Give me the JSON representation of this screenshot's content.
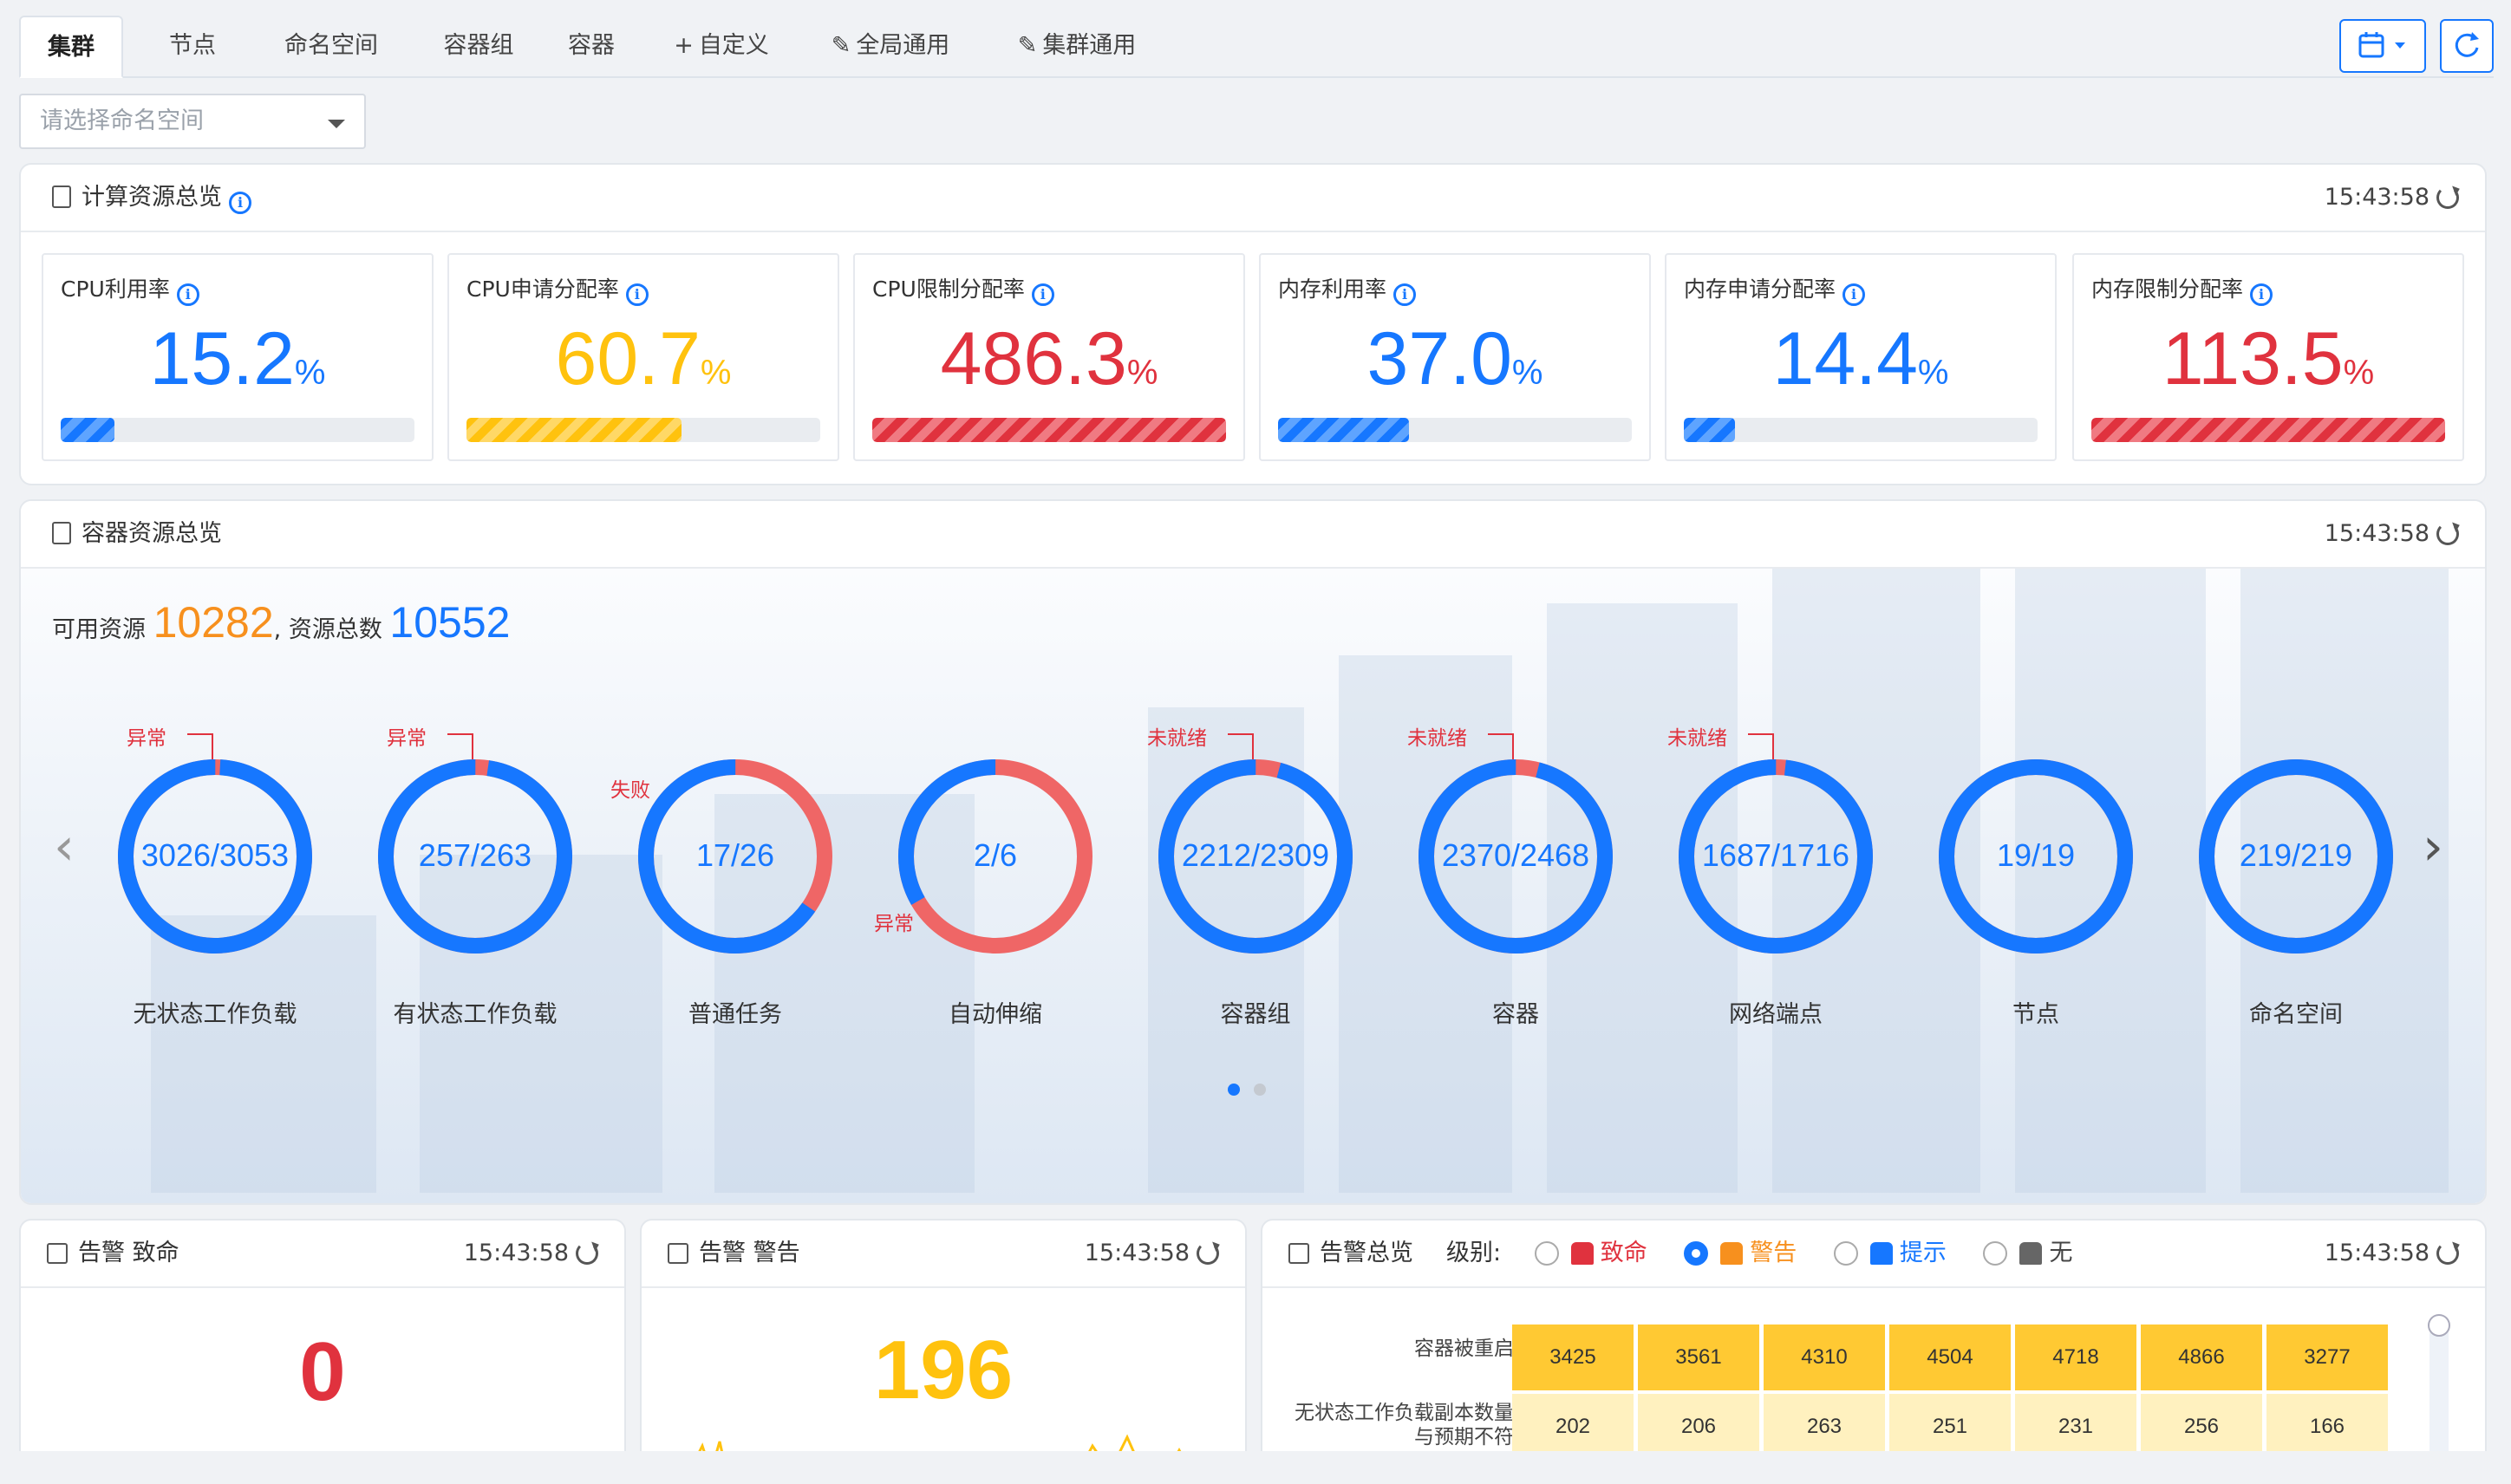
{
  "tabs": [
    {
      "label": "集群",
      "prefix": ""
    },
    {
      "label": "节点",
      "prefix": ""
    },
    {
      "label": "命名空间",
      "prefix": ""
    },
    {
      "label": "容器组",
      "prefix": ""
    },
    {
      "label": "容器",
      "prefix": ""
    },
    {
      "label": "自定义",
      "prefix": "+"
    },
    {
      "label": "全局通用",
      "prefix": "✎"
    },
    {
      "label": "集群通用",
      "prefix": "✎"
    }
  ],
  "namespace_select": {
    "placeholder": "请选择命名空间"
  },
  "compute": {
    "title": "计算资源总览",
    "timestamp": "15:43:58",
    "metrics": [
      {
        "label": "CPU利用率",
        "value": "15.2",
        "unit": "%",
        "percent": 15.2,
        "color": "#1677ff",
        "style": "blue"
      },
      {
        "label": "CPU申请分配率",
        "value": "60.7",
        "unit": "%",
        "percent": 60.7,
        "color": "#ffc20e",
        "style": "yellow"
      },
      {
        "label": "CPU限制分配率",
        "value": "486.3",
        "unit": "%",
        "percent": 100,
        "color": "#e0323e",
        "style": "red"
      },
      {
        "label": "内存利用率",
        "value": "37.0",
        "unit": "%",
        "percent": 37.0,
        "color": "#1677ff",
        "style": "blue"
      },
      {
        "label": "内存申请分配率",
        "value": "14.4",
        "unit": "%",
        "percent": 14.4,
        "color": "#1677ff",
        "style": "blue"
      },
      {
        "label": "内存限制分配率",
        "value": "113.5",
        "unit": "%",
        "percent": 100,
        "color": "#e0323e",
        "style": "red"
      }
    ]
  },
  "container": {
    "title": "容器资源总览",
    "timestamp": "15:43:58",
    "available_label": "可用资源",
    "available_value": "10282",
    "separator": ",",
    "total_label": "资源总数",
    "total_value": "10552",
    "rings": [
      {
        "label": "无状态工作负载",
        "ok": 3026,
        "total": 3053,
        "text": "3026/3053",
        "tag": "异常"
      },
      {
        "label": "有状态工作负载",
        "ok": 257,
        "total": 263,
        "text": "257/263",
        "tag": "异常"
      },
      {
        "label": "普通任务",
        "ok": 17,
        "total": 26,
        "text": "17/26",
        "tag": "失败"
      },
      {
        "label": "自动伸缩",
        "ok": 2,
        "total": 6,
        "text": "2/6",
        "tag": "异常"
      },
      {
        "label": "容器组",
        "ok": 2212,
        "total": 2309,
        "text": "2212/2309",
        "tag": "未就绪"
      },
      {
        "label": "容器",
        "ok": 2370,
        "total": 2468,
        "text": "2370/2468",
        "tag": "未就绪"
      },
      {
        "label": "网络端点",
        "ok": 1687,
        "total": 1716,
        "text": "1687/1716",
        "tag": "未就绪"
      },
      {
        "label": "节点",
        "ok": 19,
        "total": 19,
        "text": "19/19",
        "tag": ""
      },
      {
        "label": "命名空间",
        "ok": 219,
        "total": 219,
        "text": "219/219",
        "tag": ""
      }
    ],
    "ok_color": "#1677ff",
    "bad_color": "#ef6666"
  },
  "alert_fatal": {
    "title": "告警  致命",
    "timestamp": "15:43:58",
    "value": "0",
    "color": "#e0323e"
  },
  "alert_warning": {
    "title": "告警  警告",
    "timestamp": "15:43:58",
    "value": "196",
    "color": "#ffc20e"
  },
  "alert_overview": {
    "title": "告警总览",
    "timestamp": "15:43:58",
    "level_label": "级别:",
    "levels": [
      {
        "label": "致命",
        "color": "#e0323e",
        "selected": false
      },
      {
        "label": "警告",
        "color": "#f7901e",
        "selected": true
      },
      {
        "label": "提示",
        "color": "#1677ff",
        "selected": false
      },
      {
        "label": "无",
        "color": "#666666",
        "selected": false
      }
    ],
    "rows": [
      {
        "label": "容器被重启",
        "values": [
          "3425",
          "3561",
          "4310",
          "4504",
          "4718",
          "4866",
          "3277"
        ]
      },
      {
        "label": "无状态工作负载副本数量与预期不符",
        "values": [
          "202",
          "206",
          "263",
          "251",
          "231",
          "256",
          "166"
        ]
      }
    ]
  }
}
